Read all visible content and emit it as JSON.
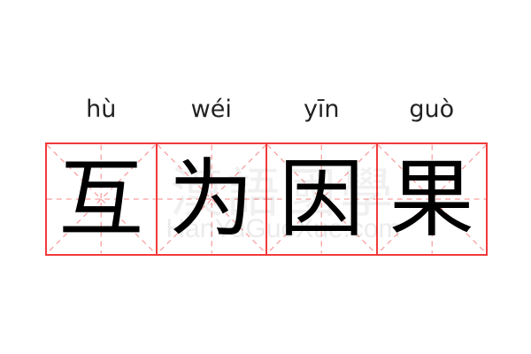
{
  "word": [
    {
      "pinyin": "hù",
      "char": "互"
    },
    {
      "pinyin": "wéi",
      "char": "为"
    },
    {
      "pinyin": "yīn",
      "char": "因"
    },
    {
      "pinyin": "guò",
      "char": "果"
    }
  ],
  "watermark": {
    "logo": "漢語國學",
    "site": "HanYuGuoXue.com"
  },
  "colors": {
    "grid": "#f23a3a",
    "guide": "#f7a0a0"
  }
}
